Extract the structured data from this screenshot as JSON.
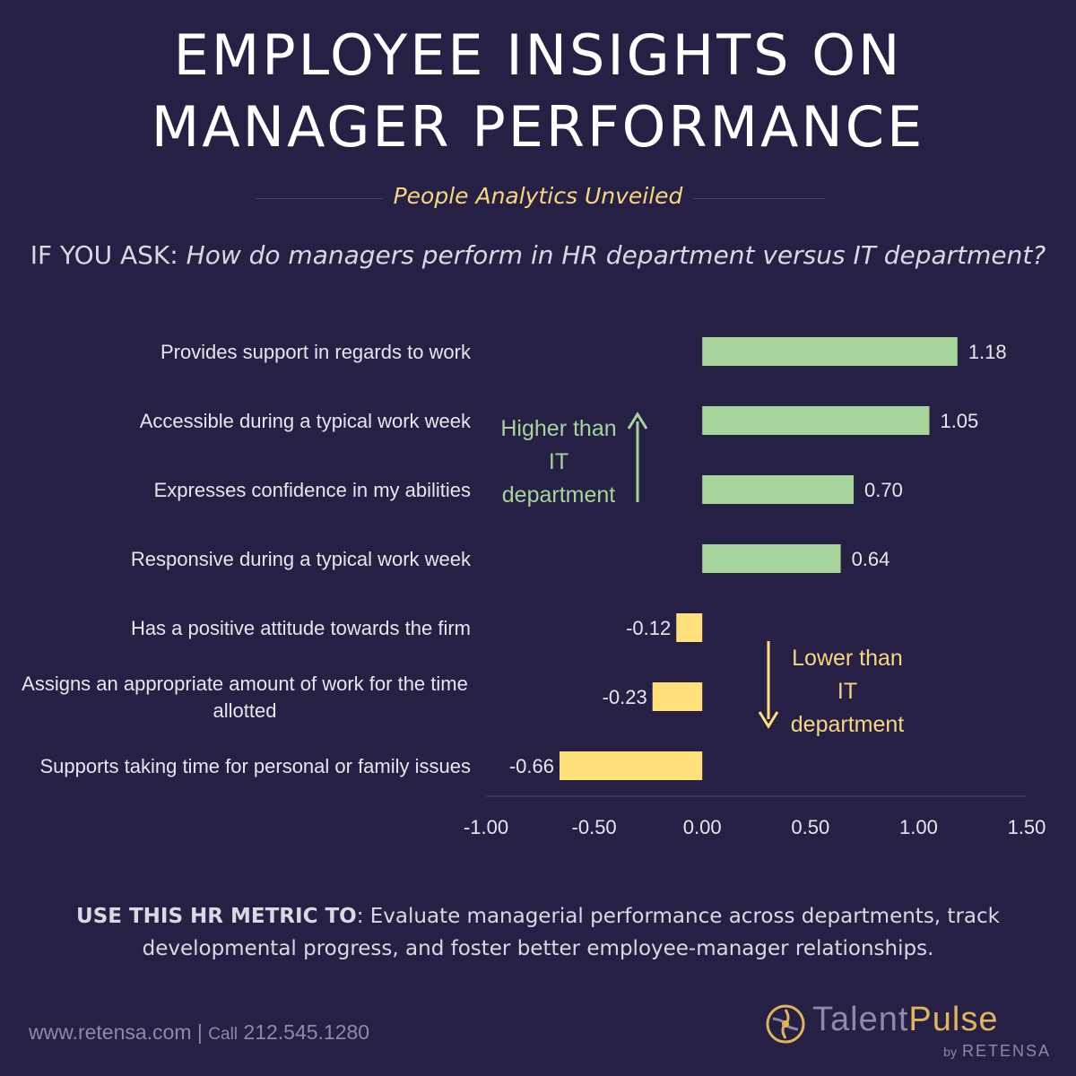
{
  "header": {
    "title_line1": "EMPLOYEE INSIGHTS ON",
    "title_line2": "MANAGER PERFORMANCE",
    "subtitle": "People Analytics Unveiled",
    "question_lead": "IF YOU ASK: ",
    "question_text": "How do managers perform in HR department versus IT department?"
  },
  "chart_data": {
    "type": "bar",
    "orientation": "horizontal",
    "categories": [
      "Provides support in regards to work",
      "Accessible during a typical work week",
      "Expresses confidence in my abilities",
      "Responsive during a typical work week",
      "Has a positive attitude towards the firm",
      "Assigns an appropriate amount of work for the time allotted",
      "Supports taking time for personal or family issues"
    ],
    "category_lines": [
      [
        "Provides support in regards to work"
      ],
      [
        "Accessible during a typical work week"
      ],
      [
        "Expresses confidence in my abilities"
      ],
      [
        "Responsive during a typical work week"
      ],
      [
        "Has a positive attitude towards the firm"
      ],
      [
        "Assigns an appropriate amount of work for the time",
        "allotted"
      ],
      [
        "Supports taking time for personal or family issues"
      ]
    ],
    "values": [
      1.18,
      1.05,
      0.7,
      0.64,
      -0.12,
      -0.23,
      -0.66
    ],
    "value_labels": [
      "1.18",
      "1.05",
      "0.70",
      "0.64",
      "-0.12",
      "-0.23",
      "-0.66"
    ],
    "xlim": [
      -1.0,
      1.5
    ],
    "xticks": [
      -1.0,
      -0.5,
      0.0,
      0.5,
      1.0,
      1.5
    ],
    "xtick_labels": [
      "-1.00",
      "-0.50",
      "0.00",
      "0.50",
      "1.00",
      "1.50"
    ],
    "grid": false,
    "colors": {
      "positive": "#a7d49b",
      "negative": "#ffe07a"
    },
    "annotations": {
      "higher": [
        "Higher than",
        "IT",
        "department"
      ],
      "lower": [
        "Lower than",
        "IT",
        "department"
      ]
    }
  },
  "footer": {
    "usage_bold": "USE THIS HR METRIC TO",
    "usage_text": ": Evaluate managerial performance across departments, track developmental progress, and foster better employee-manager relationships.",
    "website": "www.retensa.com",
    "separator": "|",
    "call_label": "Call",
    "phone": "212.545.1280",
    "brand_talent": "Talent",
    "brand_pulse": "Pulse",
    "brand_by": "by",
    "brand_company": "RETENSA",
    "accent_color": "#e0b45a"
  }
}
